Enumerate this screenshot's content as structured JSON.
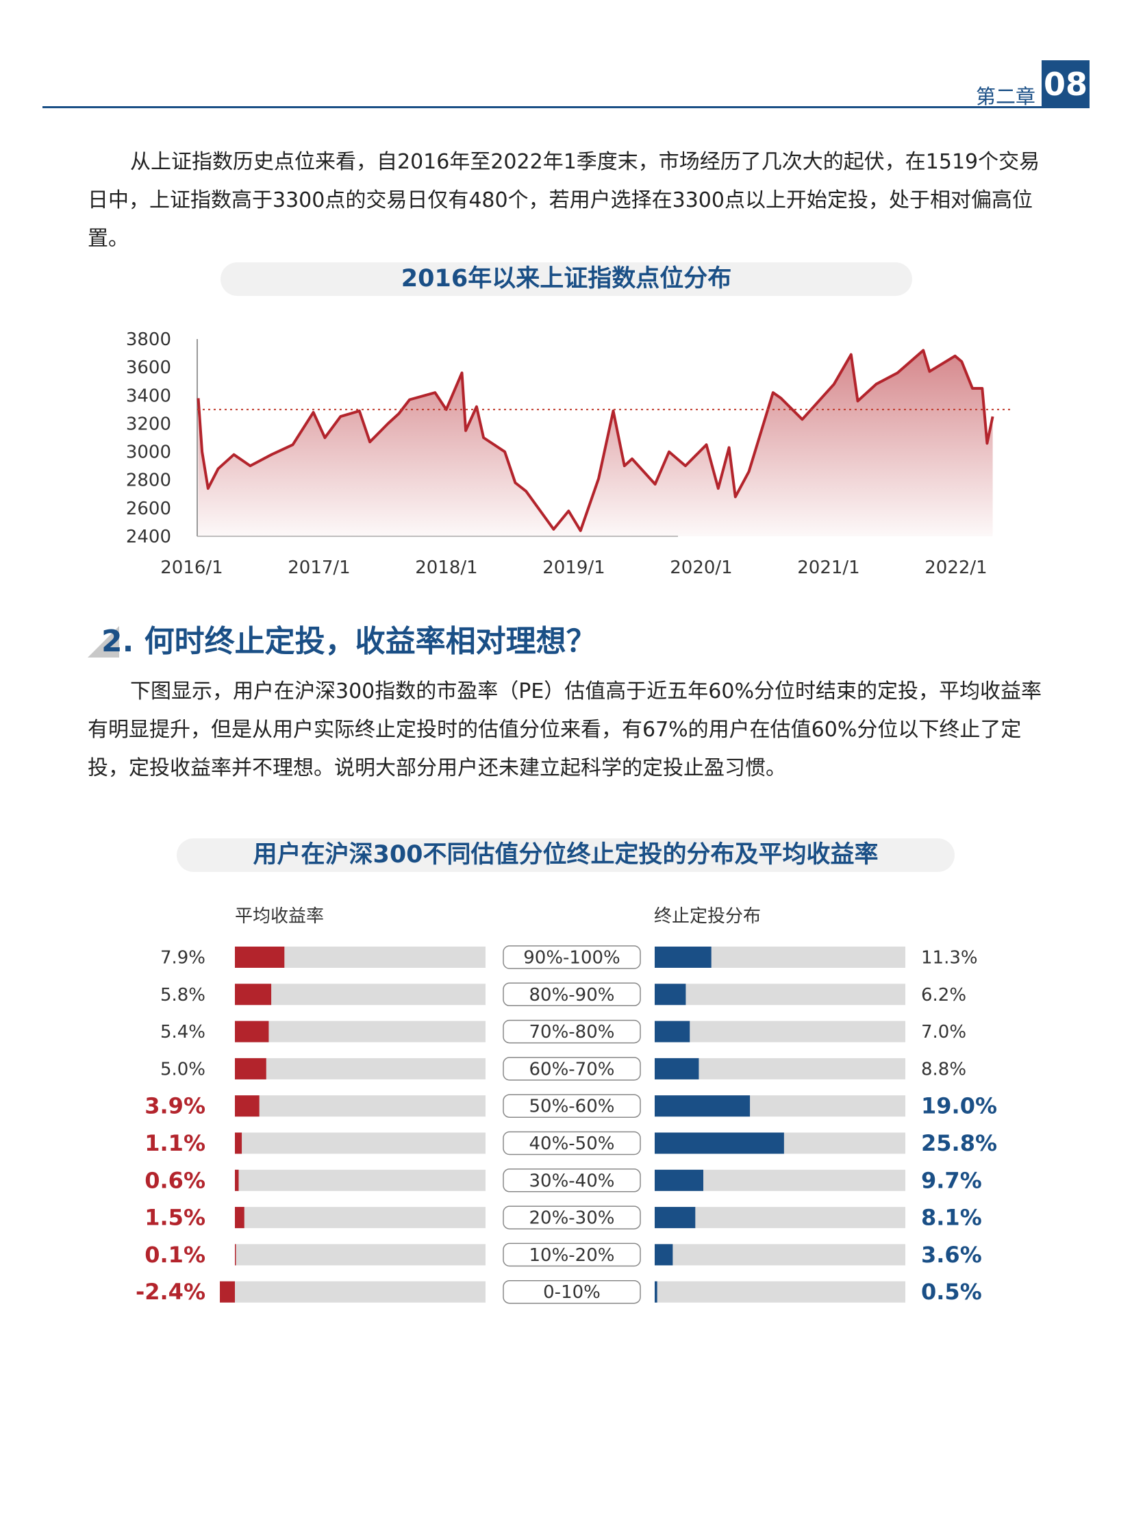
{
  "header": {
    "chapter": "第二章",
    "page": "08"
  },
  "para1": "从上证指数历史点位来看，自2016年至2022年1季度末，市场经历了几次大的起伏，在1519个交易日中，上证指数高于3300点的交易日仅有480个，若用户选择在3300点以上开始定投，处于相对偏高位置。",
  "section_title": "2. 何时终止定投，收益率相对理想？",
  "para2": "下图显示，用户在沪深300指数的市盈率（PE）估值高于近五年60%分位时结束的定投，平均收益率有明显提升，但是从用户实际终止定投时的估值分位来看，有67%的用户在估值60%分位以下终止了定投，定投收益率并不理想。说明大部分用户还未建立起科学的定投止盈习惯。",
  "colors": {
    "brand_blue": "#1a4f86",
    "red": "#b3242c",
    "bar_bg": "#dcdcdc"
  },
  "chart_data": [
    {
      "type": "area",
      "title": "2016年以来上证指数点位分布",
      "x_tick_labels": [
        "2016/1",
        "2017/1",
        "2018/1",
        "2019/1",
        "2020/1",
        "2021/1",
        "2022/1"
      ],
      "y_tick_labels": [
        "2400",
        "2600",
        "2800",
        "3000",
        "3200",
        "3400",
        "3600",
        "3800"
      ],
      "ylim": [
        2400,
        3800
      ],
      "reference_line": 3300,
      "x": [
        "2016-01-04",
        "2016-01-15",
        "2016-02-01",
        "2016-03-01",
        "2016-04-15",
        "2016-06-01",
        "2016-08-01",
        "2016-10-01",
        "2016-11-29",
        "2017-01-01",
        "2017-02-15",
        "2017-04-10",
        "2017-05-10",
        "2017-07-01",
        "2017-08-01",
        "2017-09-01",
        "2017-11-13",
        "2017-12-15",
        "2018-01-29",
        "2018-02-09",
        "2018-03-12",
        "2018-04-01",
        "2018-06-01",
        "2018-07-01",
        "2018-08-01",
        "2018-10-19",
        "2018-12-01",
        "2019-01-04",
        "2019-02-25",
        "2019-04-08",
        "2019-05-10",
        "2019-06-01",
        "2019-08-06",
        "2019-09-15",
        "2019-11-01",
        "2019-12-31",
        "2020-02-03",
        "2020-03-05",
        "2020-03-23",
        "2020-05-01",
        "2020-07-09",
        "2020-08-01",
        "2020-10-01",
        "2020-12-31",
        "2021-02-18",
        "2021-03-09",
        "2021-05-01",
        "2021-07-01",
        "2021-09-13",
        "2021-10-01",
        "2021-12-13",
        "2022-01-01",
        "2022-02-01",
        "2022-03-01",
        "2022-03-15",
        "2022-03-31"
      ],
      "y": [
        3380,
        3000,
        2740,
        2880,
        2980,
        2900,
        2980,
        3050,
        3280,
        3100,
        3250,
        3290,
        3070,
        3200,
        3270,
        3370,
        3420,
        3300,
        3560,
        3150,
        3320,
        3100,
        3000,
        2780,
        2720,
        2450,
        2580,
        2440,
        2810,
        3290,
        2900,
        2950,
        2770,
        3000,
        2900,
        3050,
        2740,
        3030,
        2680,
        2860,
        3420,
        3380,
        3230,
        3480,
        3690,
        3360,
        3480,
        3560,
        3720,
        3570,
        3680,
        3640,
        3450,
        3450,
        3060,
        3250
      ]
    },
    {
      "type": "bar",
      "title": "用户在沪深300不同估值分位终止定投的分布及平均收益率",
      "left_header": "平均收益率",
      "right_header": "终止定投分布",
      "categories": [
        "90%-100%",
        "80%-90%",
        "70%-80%",
        "60%-70%",
        "50%-60%",
        "40%-50%",
        "30%-40%",
        "20%-30%",
        "10%-20%",
        "0-10%"
      ],
      "series": [
        {
          "name": "平均收益率",
          "values": [
            7.9,
            5.8,
            5.4,
            5.0,
            3.9,
            1.1,
            0.6,
            1.5,
            0.1,
            -2.4
          ],
          "labels": [
            "7.9%",
            "5.8%",
            "5.4%",
            "5.0%",
            "3.9%",
            "1.1%",
            "0.6%",
            "1.5%",
            "0.1%",
            "-2.4%"
          ]
        },
        {
          "name": "终止定投分布",
          "values": [
            11.3,
            6.2,
            7.0,
            8.8,
            19.0,
            25.8,
            9.7,
            8.1,
            3.6,
            0.5
          ],
          "labels": [
            "11.3%",
            "6.2%",
            "7.0%",
            "8.8%",
            "19.0%",
            "25.8%",
            "9.7%",
            "8.1%",
            "3.6%",
            "0.5%"
          ]
        }
      ],
      "highlight_from_index": 4
    }
  ]
}
